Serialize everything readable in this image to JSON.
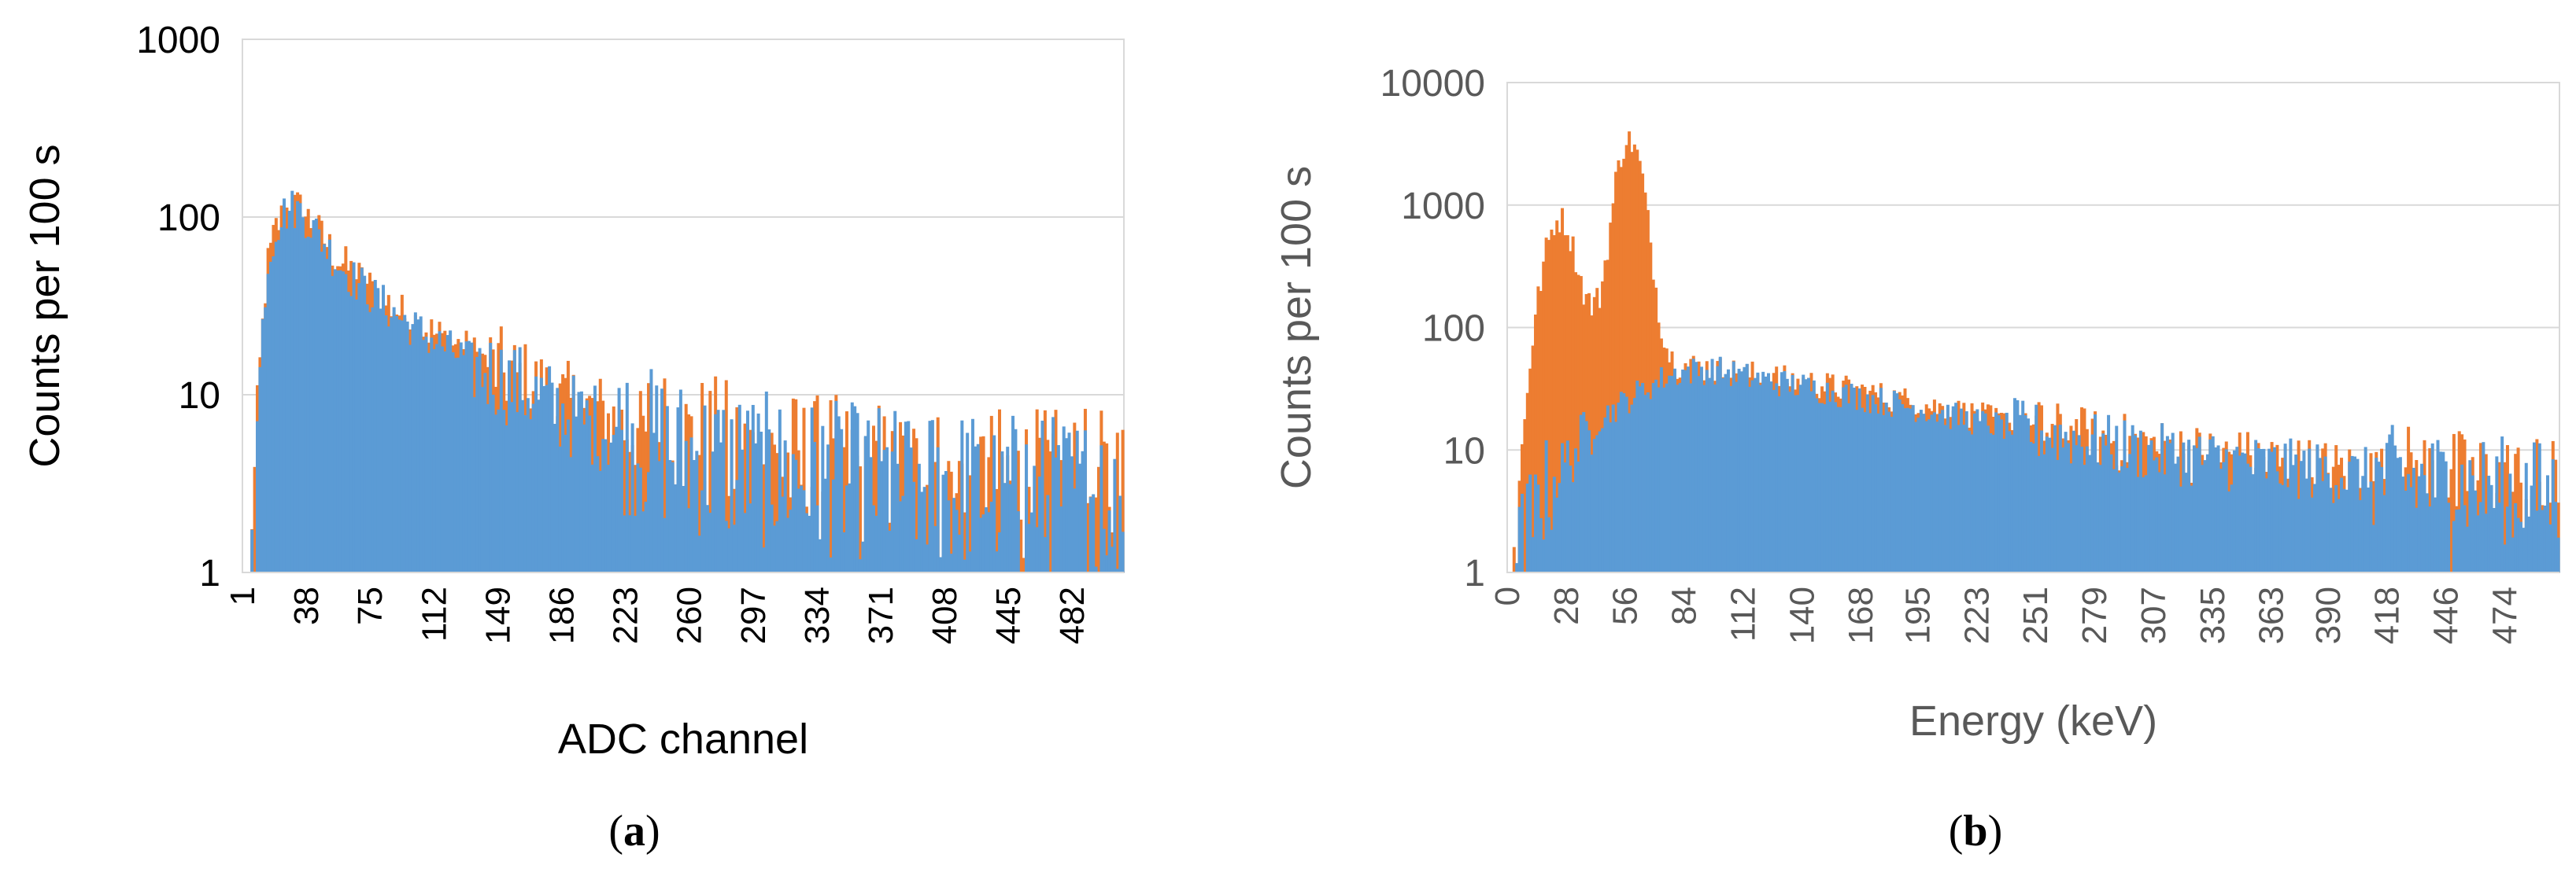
{
  "panels": [
    {
      "id": "a",
      "caption": "a",
      "chart_data": {
        "type": "bar",
        "xlabel": "ADC channel",
        "ylabel": "Counts per 100 s",
        "yscale": "log",
        "ylim": [
          1,
          1000
        ],
        "yticks": [
          "1",
          "10",
          "100",
          "1000"
        ],
        "xlim": [
          1,
          512
        ],
        "xticks": [
          "1",
          "38",
          "75",
          "112",
          "149",
          "186",
          "223",
          "260",
          "297",
          "334",
          "371",
          "408",
          "445",
          "482"
        ],
        "grid": true,
        "axis_text_color": "#000000",
        "series": [
          {
            "color": "#ED7D31",
            "note_points": "anchor points [x, counts]",
            "points": [
              [
                1,
                1
              ],
              [
                6,
                1
              ],
              [
                8,
                3
              ],
              [
                10,
                8
              ],
              [
                12,
                20
              ],
              [
                15,
                50
              ],
              [
                20,
                85
              ],
              [
                25,
                105
              ],
              [
                30,
                115
              ],
              [
                35,
                110
              ],
              [
                40,
                95
              ],
              [
                48,
                75
              ],
              [
                55,
                60
              ],
              [
                65,
                48
              ],
              [
                75,
                40
              ],
              [
                90,
                30
              ],
              [
                100,
                26
              ],
              [
                112,
                22
              ],
              [
                130,
                18
              ],
              [
                149,
                14
              ],
              [
                170,
                11
              ],
              [
                186,
                9
              ],
              [
                210,
                7.5
              ],
              [
                223,
                6.5
              ],
              [
                260,
                5
              ],
              [
                297,
                4.2
              ],
              [
                334,
                3.7
              ],
              [
                371,
                3.4
              ],
              [
                408,
                3.2
              ],
              [
                445,
                3.1
              ],
              [
                482,
                3
              ],
              [
                512,
                3
              ]
            ]
          },
          {
            "color": "#5B9BD5",
            "note_points": "anchor points [x, counts]",
            "points": [
              [
                1,
                1
              ],
              [
                6,
                1
              ],
              [
                8,
                3
              ],
              [
                10,
                8
              ],
              [
                12,
                20
              ],
              [
                15,
                50
              ],
              [
                20,
                85
              ],
              [
                25,
                105
              ],
              [
                30,
                112
              ],
              [
                35,
                108
              ],
              [
                40,
                92
              ],
              [
                48,
                72
              ],
              [
                55,
                57
              ],
              [
                65,
                45
              ],
              [
                75,
                37
              ],
              [
                90,
                28
              ],
              [
                100,
                24
              ],
              [
                112,
                20
              ],
              [
                130,
                16
              ],
              [
                149,
                12.5
              ],
              [
                170,
                10
              ],
              [
                186,
                8
              ],
              [
                210,
                6.5
              ],
              [
                223,
                5.8
              ],
              [
                260,
                4.4
              ],
              [
                297,
                3.8
              ],
              [
                334,
                3.4
              ],
              [
                371,
                3.2
              ],
              [
                408,
                3
              ],
              [
                445,
                2.9
              ],
              [
                482,
                2.8
              ],
              [
                512,
                2.8
              ]
            ]
          }
        ]
      }
    },
    {
      "id": "b",
      "caption": "b",
      "chart_data": {
        "type": "bar",
        "xlabel": "Energy (keV)",
        "ylabel": "Counts per 100 s",
        "yscale": "log",
        "ylim": [
          1,
          10000
        ],
        "yticks": [
          "1",
          "10",
          "100",
          "1000",
          "10000"
        ],
        "xlim": [
          0,
          500
        ],
        "xticks": [
          "0",
          "28",
          "56",
          "84",
          "112",
          "140",
          "168",
          "195",
          "223",
          "251",
          "279",
          "307",
          "335",
          "363",
          "390",
          "418",
          "446",
          "474"
        ],
        "grid": true,
        "axis_text_color": "#595959",
        "series": [
          {
            "color": "#ED7D31",
            "note_points": "anchor points [energy keV, counts]",
            "points": [
              [
                0,
                1
              ],
              [
                3,
                1
              ],
              [
                5,
                3
              ],
              [
                7,
                10
              ],
              [
                10,
                40
              ],
              [
                14,
                150
              ],
              [
                18,
                400
              ],
              [
                22,
                700
              ],
              [
                25,
                780
              ],
              [
                28,
                700
              ],
              [
                32,
                400
              ],
              [
                36,
                200
              ],
              [
                40,
                150
              ],
              [
                44,
                180
              ],
              [
                48,
                500
              ],
              [
                52,
                1800
              ],
              [
                56,
                3400
              ],
              [
                60,
                3200
              ],
              [
                64,
                1800
              ],
              [
                68,
                500
              ],
              [
                72,
                130
              ],
              [
                76,
                65
              ],
              [
                80,
                50
              ],
              [
                90,
                48
              ],
              [
                112,
                42
              ],
              [
                140,
                36
              ],
              [
                168,
                30
              ],
              [
                195,
                24
              ],
              [
                223,
                19
              ],
              [
                251,
                15
              ],
              [
                279,
                12.5
              ],
              [
                307,
                10.5
              ],
              [
                335,
                9
              ],
              [
                363,
                8
              ],
              [
                390,
                7
              ],
              [
                418,
                6.2
              ],
              [
                446,
                5.5
              ],
              [
                474,
                5
              ],
              [
                500,
                4.5
              ]
            ]
          },
          {
            "color": "#5B9BD5",
            "note_points": "anchor points [energy keV, counts]",
            "points": [
              [
                0,
                1
              ],
              [
                3,
                1
              ],
              [
                5,
                1.5
              ],
              [
                8,
                2
              ],
              [
                12,
                3
              ],
              [
                16,
                4
              ],
              [
                20,
                5
              ],
              [
                28,
                8
              ],
              [
                36,
                12
              ],
              [
                44,
                18
              ],
              [
                56,
                25
              ],
              [
                66,
                32
              ],
              [
                76,
                40
              ],
              [
                84,
                44
              ],
              [
                100,
                45
              ],
              [
                112,
                40
              ],
              [
                140,
                33
              ],
              [
                168,
                27
              ],
              [
                195,
                22
              ],
              [
                223,
                17
              ],
              [
                251,
                14
              ],
              [
                279,
                11.5
              ],
              [
                307,
                9.5
              ],
              [
                335,
                8.3
              ],
              [
                363,
                7.3
              ],
              [
                390,
                6.5
              ],
              [
                418,
                5.8
              ],
              [
                446,
                5.2
              ],
              [
                474,
                4.7
              ],
              [
                500,
                4.3
              ]
            ]
          }
        ]
      }
    }
  ]
}
